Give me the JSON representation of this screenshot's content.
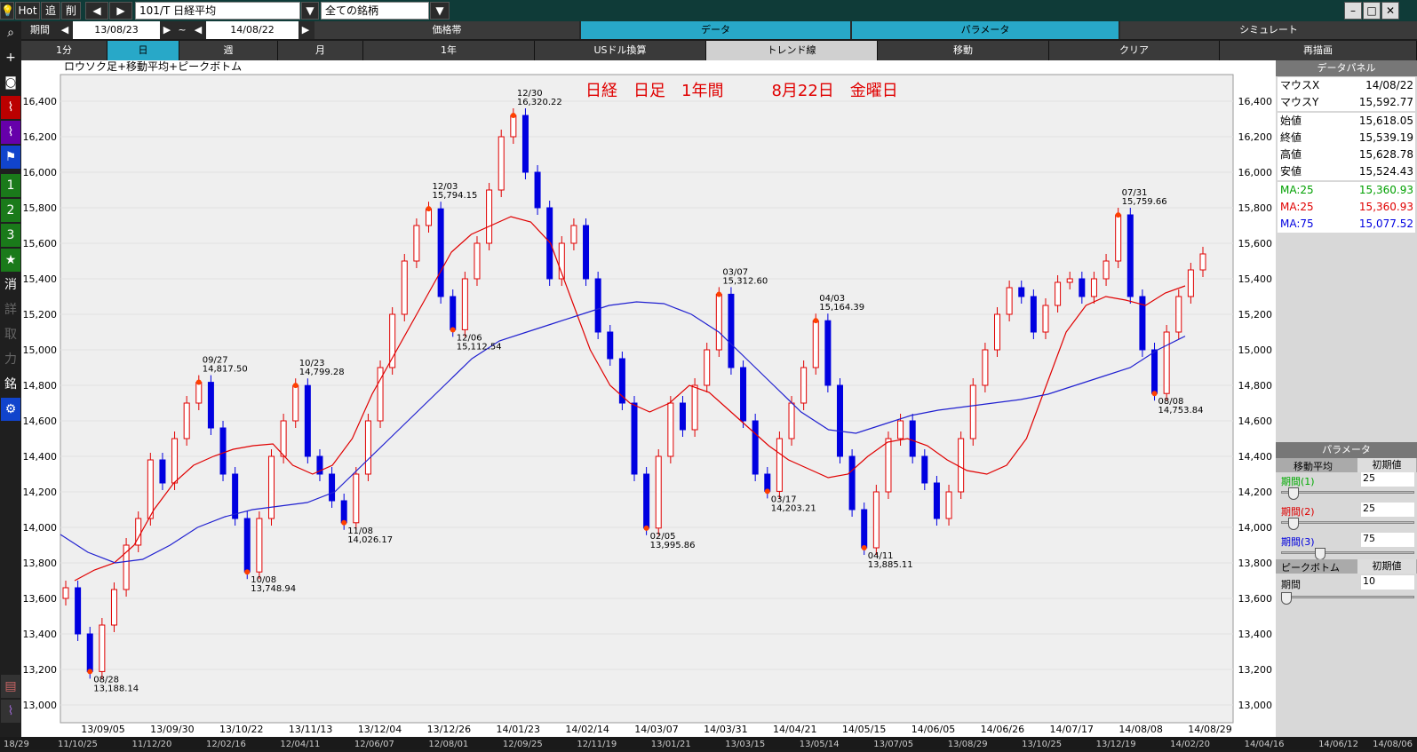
{
  "topbar": {
    "hot": "Hot",
    "add": "追",
    "del": "削",
    "symbol": "101/T 日経平均",
    "filter": "全ての銘柄"
  },
  "row2": {
    "period_label": "期間",
    "date_from": "13/08/23",
    "tilde": "~",
    "date_to": "14/08/22",
    "tabs": [
      "価格帯",
      "データ",
      "パラメータ",
      "シミュレート"
    ]
  },
  "row3": {
    "cells": [
      "1分",
      "日",
      "週",
      "月",
      "1年",
      "USドル換算",
      "トレンド線",
      "移動",
      "クリア",
      "再描画"
    ]
  },
  "lefttb": [
    "1",
    "2",
    "3",
    "★",
    "消",
    "詳",
    "取",
    "力",
    "銘"
  ],
  "chart": {
    "legend": "ロウソク足+移動平均+ピークボトム",
    "title": "日経　日足　1年間　　　8月22日　金曜日",
    "y_ticks": [
      "16,400",
      "16,200",
      "16,000",
      "15,800",
      "15,600",
      "15,400",
      "15,200",
      "15,000",
      "14,800",
      "14,600",
      "14,400",
      "14,200",
      "14,000",
      "13,800",
      "13,600",
      "13,400",
      "13,200",
      "13,000"
    ],
    "x_ticks": [
      "13/09/05",
      "13/09/30",
      "13/10/22",
      "13/11/13",
      "13/12/04",
      "13/12/26",
      "14/01/23",
      "14/02/14",
      "14/03/07",
      "14/03/31",
      "14/04/21",
      "14/05/15",
      "14/06/05",
      "14/06/26",
      "14/07/17",
      "14/08/08",
      "14/08/29"
    ],
    "bottom_ticks": [
      "18/29",
      "11/10/25",
      "11/12/20",
      "12/02/16",
      "12/04/11",
      "12/06/07",
      "12/08/01",
      "12/09/25",
      "12/11/19",
      "13/01/21",
      "13/03/15",
      "13/05/14",
      "13/07/05",
      "13/08/29",
      "13/10/25",
      "13/12/19",
      "14/02/20",
      "14/04/16",
      "14/06/12",
      "14/08/06"
    ],
    "peaks": [
      {
        "date": "08/28",
        "value": "13,188.14"
      },
      {
        "date": "09/27",
        "value": "14,817.50"
      },
      {
        "date": "10/08",
        "value": "13,748.94"
      },
      {
        "date": "10/23",
        "value": "14,799.28"
      },
      {
        "date": "11/08",
        "value": "14,026.17"
      },
      {
        "date": "12/03",
        "value": "15,794.15"
      },
      {
        "date": "12/06",
        "value": "15,112.54"
      },
      {
        "date": "12/30",
        "value": "16,320.22"
      },
      {
        "date": "02/05",
        "value": "13,995.86"
      },
      {
        "date": "03/07",
        "value": "15,312.60"
      },
      {
        "date": "03/17",
        "value": "14,203.21"
      },
      {
        "date": "04/03",
        "value": "15,164.39"
      },
      {
        "date": "04/11",
        "value": "13,885.11"
      },
      {
        "date": "07/31",
        "value": "15,759.66"
      },
      {
        "date": "08/08",
        "value": "14,753.84"
      }
    ]
  },
  "chart_data": {
    "type": "candlestick",
    "title": "日経　日足　1年間　　　8月22日　金曜日",
    "ylim": [
      12900,
      16550
    ],
    "y_tick_values": [
      13000,
      13200,
      13400,
      13600,
      13800,
      14000,
      14200,
      14400,
      14600,
      14800,
      15000,
      15200,
      15400,
      15600,
      15800,
      16000,
      16200,
      16400
    ],
    "series": [
      {
        "name": "ローソク足",
        "close": [
          13660,
          13400,
          13188,
          13450,
          13650,
          13900,
          14050,
          14380,
          14250,
          14500,
          14700,
          14817,
          14560,
          14300,
          14050,
          13749,
          14050,
          14400,
          14600,
          14799,
          14400,
          14300,
          14150,
          14026,
          14300,
          14600,
          14900,
          15200,
          15500,
          15700,
          15794,
          15300,
          15113,
          15400,
          15600,
          15900,
          16200,
          16320,
          16000,
          15800,
          15400,
          15600,
          15700,
          15400,
          15100,
          14950,
          14700,
          14300,
          13996,
          14400,
          14700,
          14550,
          14800,
          15000,
          15313,
          14900,
          14600,
          14300,
          14203,
          14500,
          14700,
          14900,
          15164,
          14800,
          14400,
          14100,
          13885,
          14200,
          14500,
          14600,
          14400,
          14250,
          14050,
          14200,
          14500,
          14800,
          15000,
          15200,
          15350,
          15300,
          15100,
          15250,
          15380,
          15400,
          15300,
          15400,
          15500,
          15760,
          15300,
          15000,
          14754,
          15100,
          15300,
          15450,
          15540
        ]
      },
      {
        "name": "MA:25",
        "values": [
          13700,
          13760,
          13800,
          13900,
          14100,
          14250,
          14350,
          14400,
          14440,
          14460,
          14470,
          14350,
          14300,
          14350,
          14500,
          14750,
          14950,
          15150,
          15350,
          15550,
          15650,
          15700,
          15750,
          15720,
          15600,
          15300,
          15000,
          14800,
          14700,
          14650,
          14700,
          14800,
          14760,
          14660,
          14560,
          14460,
          14380,
          14330,
          14280,
          14300,
          14400,
          14480,
          14500,
          14460,
          14380,
          14320,
          14300,
          14350,
          14500,
          14800,
          15100,
          15250,
          15300,
          15280,
          15250,
          15320,
          15360
        ]
      },
      {
        "name": "MA:75",
        "values": [
          13960,
          13860,
          13800,
          13820,
          13900,
          14000,
          14060,
          14100,
          14120,
          14140,
          14200,
          14350,
          14500,
          14650,
          14800,
          14950,
          15050,
          15100,
          15150,
          15200,
          15250,
          15270,
          15260,
          15200,
          15100,
          14950,
          14800,
          14650,
          14550,
          14530,
          14580,
          14630,
          14660,
          14680,
          14700,
          14720,
          14750,
          14800,
          14850,
          14900,
          15000,
          15077
        ]
      }
    ]
  },
  "data_panel": {
    "header": "データパネル",
    "rows": [
      {
        "k": "マウスX",
        "v": "14/08/22",
        "color": "#000000"
      },
      {
        "k": "マウスY",
        "v": "15,592.77",
        "color": "#000000"
      },
      {
        "k": "始値",
        "v": "15,618.05",
        "color": "#000000"
      },
      {
        "k": "終値",
        "v": "15,539.19",
        "color": "#000000"
      },
      {
        "k": "高値",
        "v": "15,628.78",
        "color": "#000000"
      },
      {
        "k": "安値",
        "v": "15,524.43",
        "color": "#000000"
      },
      {
        "k": "MA:25",
        "v": "15,360.93",
        "color": "#00a000"
      },
      {
        "k": "MA:25",
        "v": "15,360.93",
        "color": "#e00000"
      },
      {
        "k": "MA:75",
        "v": "15,077.52",
        "color": "#0000e0"
      }
    ]
  },
  "params": {
    "header": "パラメータ",
    "ma_label": "移動平均",
    "reset": "初期値",
    "period1": "期間(1)",
    "period1_value": "25",
    "period2": "期間(2)",
    "period2_value": "25",
    "period3": "期間(3)",
    "period3_value": "75",
    "pb_label": "ピークボトム",
    "pb_reset": "初期値",
    "pb_period": "期間",
    "pb_value": "10"
  },
  "colors": {
    "up": "#e00000",
    "down": "#0000e0",
    "ma25": "#e00000",
    "ma75": "#2020d0",
    "peak": "#ff4000"
  }
}
